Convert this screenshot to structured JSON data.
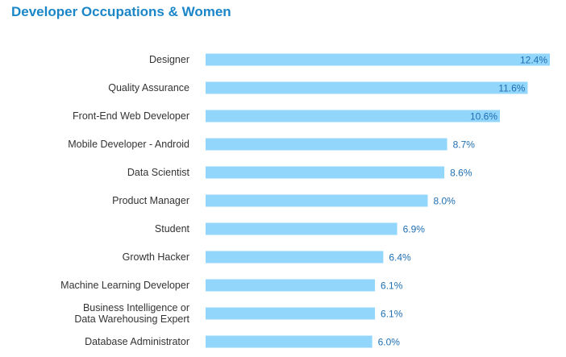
{
  "chart_data": {
    "type": "bar",
    "orientation": "horizontal",
    "title": "Developer Occupations & Women",
    "categories": [
      [
        "Designer"
      ],
      [
        "Quality Assurance"
      ],
      [
        "Front-End Web Developer"
      ],
      [
        "Mobile Developer - Android"
      ],
      [
        "Data Scientist"
      ],
      [
        "Product Manager"
      ],
      [
        "Student"
      ],
      [
        "Growth Hacker"
      ],
      [
        "Machine Learning Developer"
      ],
      [
        "Business Intelligence or",
        "Data Warehousing Expert"
      ],
      [
        "Database Administrator"
      ]
    ],
    "values": [
      12.4,
      11.6,
      10.6,
      8.7,
      8.6,
      8.0,
      6.9,
      6.4,
      6.1,
      6.1,
      6.0
    ],
    "value_labels": [
      "12.4%",
      "11.6%",
      "10.6%",
      "8.7%",
      "8.6%",
      "8.0%",
      "6.9%",
      "6.4%",
      "6.1%",
      "6.1%",
      "6.0%"
    ],
    "bar_color": "#93d6fb",
    "value_label_color": "#1f6fb2",
    "title_color": "#1a86c8",
    "xlim": [
      0,
      12.4
    ],
    "grid": false
  }
}
